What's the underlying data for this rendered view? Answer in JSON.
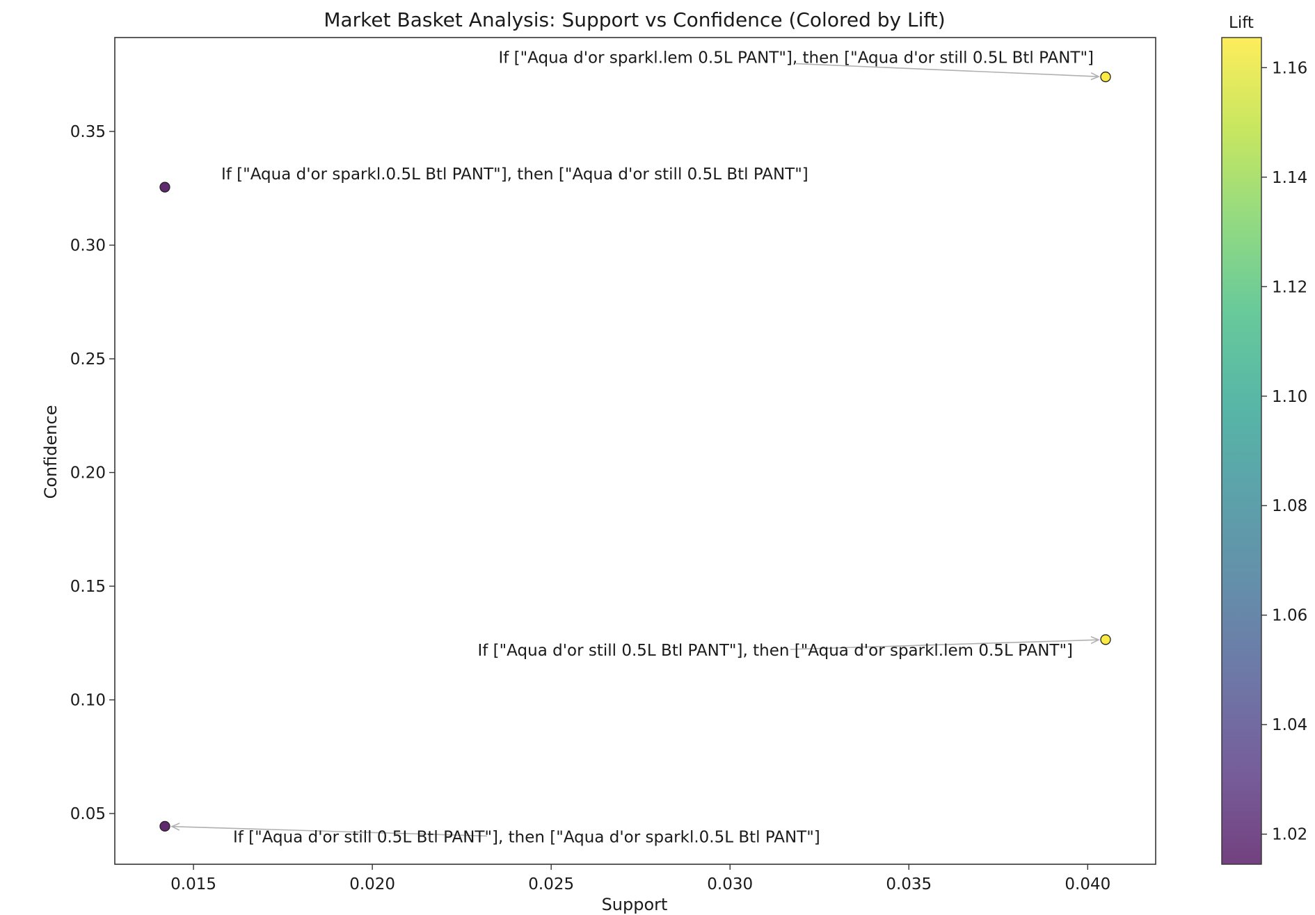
{
  "chart_data": {
    "type": "scatter",
    "title": "Market Basket Analysis: Support vs Confidence (Colored by Lift)",
    "xlabel": "Support",
    "ylabel": "Confidence",
    "xlim": [
      0.0128,
      0.0419
    ],
    "ylim": [
      0.0277,
      0.3913
    ],
    "xticks": [
      {
        "value": 0.015,
        "label": "0.015"
      },
      {
        "value": 0.02,
        "label": "0.020"
      },
      {
        "value": 0.025,
        "label": "0.025"
      },
      {
        "value": 0.03,
        "label": "0.030"
      },
      {
        "value": 0.035,
        "label": "0.035"
      },
      {
        "value": 0.04,
        "label": "0.040"
      }
    ],
    "yticks": [
      {
        "value": 0.05,
        "label": "0.05"
      },
      {
        "value": 0.1,
        "label": "0.10"
      },
      {
        "value": 0.15,
        "label": "0.15"
      },
      {
        "value": 0.2,
        "label": "0.20"
      },
      {
        "value": 0.25,
        "label": "0.25"
      },
      {
        "value": 0.3,
        "label": "0.30"
      },
      {
        "value": 0.35,
        "label": "0.35"
      }
    ],
    "grid": false,
    "points": [
      {
        "support": 0.0405,
        "confidence": 0.374,
        "lift": 1.165,
        "label": "If [\"Aqua d'or sparkl.lem 0.5L PANT\"], then [\"Aqua d'or still 0.5L Btl PANT\"]"
      },
      {
        "support": 0.0142,
        "confidence": 0.3255,
        "lift": 1.015,
        "label": "If [\"Aqua d'or sparkl.0.5L Btl PANT\"], then [\"Aqua d'or still 0.5L Btl PANT\"]"
      },
      {
        "support": 0.0405,
        "confidence": 0.1265,
        "lift": 1.165,
        "label": "If [\"Aqua d'or still 0.5L Btl PANT\"], then [\"Aqua d'or sparkl.lem 0.5L PANT\"]"
      },
      {
        "support": 0.0142,
        "confidence": 0.0444,
        "lift": 1.015,
        "label": "If [\"Aqua d'or still 0.5L Btl PANT\"], then [\"Aqua d'or sparkl.0.5L Btl PANT\"]"
      }
    ],
    "colorbar": {
      "title": "Lift",
      "colormap": "viridis",
      "alpha": 0.7,
      "range": [
        1.0145,
        1.1655
      ],
      "ticks": [
        {
          "value": 1.02,
          "label": "1.02"
        },
        {
          "value": 1.04,
          "label": "1.04"
        },
        {
          "value": 1.06,
          "label": "1.06"
        },
        {
          "value": 1.08,
          "label": "1.08"
        },
        {
          "value": 1.1,
          "label": "1.10"
        },
        {
          "value": 1.12,
          "label": "1.12"
        },
        {
          "value": 1.14,
          "label": "1.14"
        },
        {
          "value": 1.16,
          "label": "1.16"
        }
      ]
    },
    "colors": {
      "viridis_stops": [
        "#440154",
        "#482878",
        "#3e4989",
        "#31688e",
        "#26828e",
        "#1f9e89",
        "#35b779",
        "#6ece58",
        "#b5de2b",
        "#fde725"
      ],
      "arrow": "#b0b0b0",
      "axes": "#333333",
      "marker_edge": "#222222"
    }
  }
}
